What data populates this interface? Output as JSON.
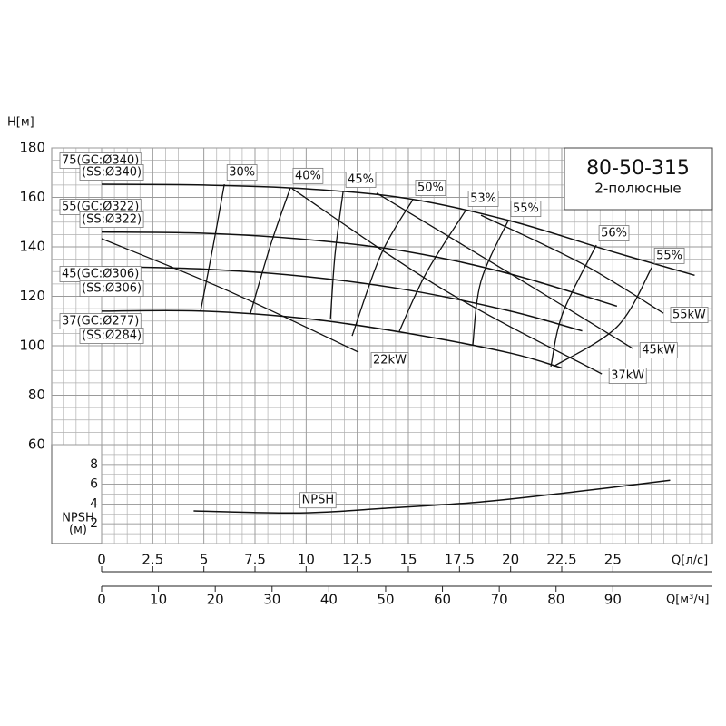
{
  "chart_data": {
    "type": "line",
    "model": "80-50-315",
    "subtitle": "2-полюсные",
    "y_label": "H[м]",
    "x_label": "Q[л/с]",
    "x2_label": "Q[м³/ч]",
    "npsh_axis_label": "NPSH",
    "npsh_axis_unit": "(м)",
    "xlim": [
      0,
      30
    ],
    "xticks": [
      0,
      2.5,
      5,
      7.5,
      10,
      12.5,
      15,
      17.5,
      20,
      22.5,
      25
    ],
    "x2lim": [
      0,
      108
    ],
    "x2ticks": [
      0,
      10,
      20,
      30,
      40,
      50,
      60,
      70,
      80,
      90
    ],
    "ylim": [
      60,
      180
    ],
    "yticks": [
      60,
      80,
      100,
      120,
      140,
      160,
      180
    ],
    "npsh_lim": [
      0,
      10
    ],
    "npsh_ticks": [
      2,
      4,
      6,
      8
    ],
    "grid": true,
    "series": [
      {
        "name": "75(GC:Ø340)",
        "subname": "(SS:Ø340)",
        "color": "#111111",
        "x": [
          0,
          5,
          10,
          15,
          20,
          25,
          29
        ],
        "values": [
          165.3,
          165,
          163.5,
          159.5,
          150.5,
          138,
          128.5
        ]
      },
      {
        "name": "55(GC:Ø322)",
        "subname": "(SS:Ø322)",
        "color": "#111111",
        "x": [
          0,
          5,
          10,
          15,
          20,
          25.2
        ],
        "values": [
          146,
          145.5,
          143,
          138,
          129,
          116
        ]
      },
      {
        "name": "45(GC:Ø306)",
        "subname": "(SS:Ø306)",
        "color": "#111111",
        "x": [
          0,
          5,
          10,
          15,
          20,
          23.5
        ],
        "values": [
          132,
          131,
          128,
          122.5,
          114,
          106
        ]
      },
      {
        "name": "37(GC:Ø277)",
        "subname": "(SS:Ø284)",
        "color": "#111111",
        "x": [
          0,
          5,
          10,
          15,
          20,
          22.5
        ],
        "values": [
          114,
          114,
          111,
          105,
          97,
          91
        ]
      }
    ],
    "efficiency": [
      {
        "label": "30%",
        "x": [
          6.0,
          5.46,
          4.84
        ],
        "values": [
          165.3,
          140.7,
          114
        ]
      },
      {
        "label": "40%",
        "x": [
          9.23,
          8.26,
          7.28
        ],
        "values": [
          163.9,
          140.7,
          113.2
        ]
      },
      {
        "label": "45%",
        "x": [
          11.81,
          11.41,
          11.19
        ],
        "values": [
          162.4,
          136.7,
          110.6
        ]
      },
      {
        "label": "50%",
        "x": [
          15.22,
          13.67,
          12.25
        ],
        "values": [
          159.1,
          137.1,
          104
        ]
      },
      {
        "label": "53%",
        "x": [
          17.8,
          15.89,
          14.56
        ],
        "values": [
          154.7,
          129.7,
          105.9
        ]
      },
      {
        "label": "55%",
        "x": [
          19.88,
          18.55,
          18.15
        ],
        "values": [
          150.6,
          126.1,
          100.4
        ]
      },
      {
        "label": "56%",
        "x": [
          24.19,
          22.55,
          21.97
        ],
        "values": [
          140.7,
          113.2,
          91.6
        ]
      },
      {
        "label": "55%",
        "x": [
          26.9,
          25.21,
          22.1
        ],
        "values": [
          131.6,
          107.7,
          91.6
        ]
      }
    ],
    "power": [
      {
        "label": "22kW",
        "x": [
          0,
          6.13,
          12.56
        ],
        "values": [
          143.3,
          122.4,
          97.4
        ]
      },
      {
        "label": "37kW",
        "x": [
          9.32,
          16.78,
          24.46
        ],
        "values": [
          163.5,
          122.4,
          88.6
        ]
      },
      {
        "label": "45kW",
        "x": [
          13.45,
          19.88,
          25.97
        ],
        "values": [
          161.7,
          129.7,
          98.9
        ]
      },
      {
        "label": "55kW",
        "x": [
          18.55,
          23.44,
          27.47
        ],
        "values": [
          152.8,
          133.4,
          113.2
        ]
      }
    ],
    "npsh": {
      "name": "NPSH",
      "x": [
        4.5,
        9.7,
        14.1,
        18.5,
        23,
        27.8
      ],
      "values": [
        3.3,
        3.1,
        3.6,
        4.2,
        5.2,
        6.4
      ]
    }
  }
}
